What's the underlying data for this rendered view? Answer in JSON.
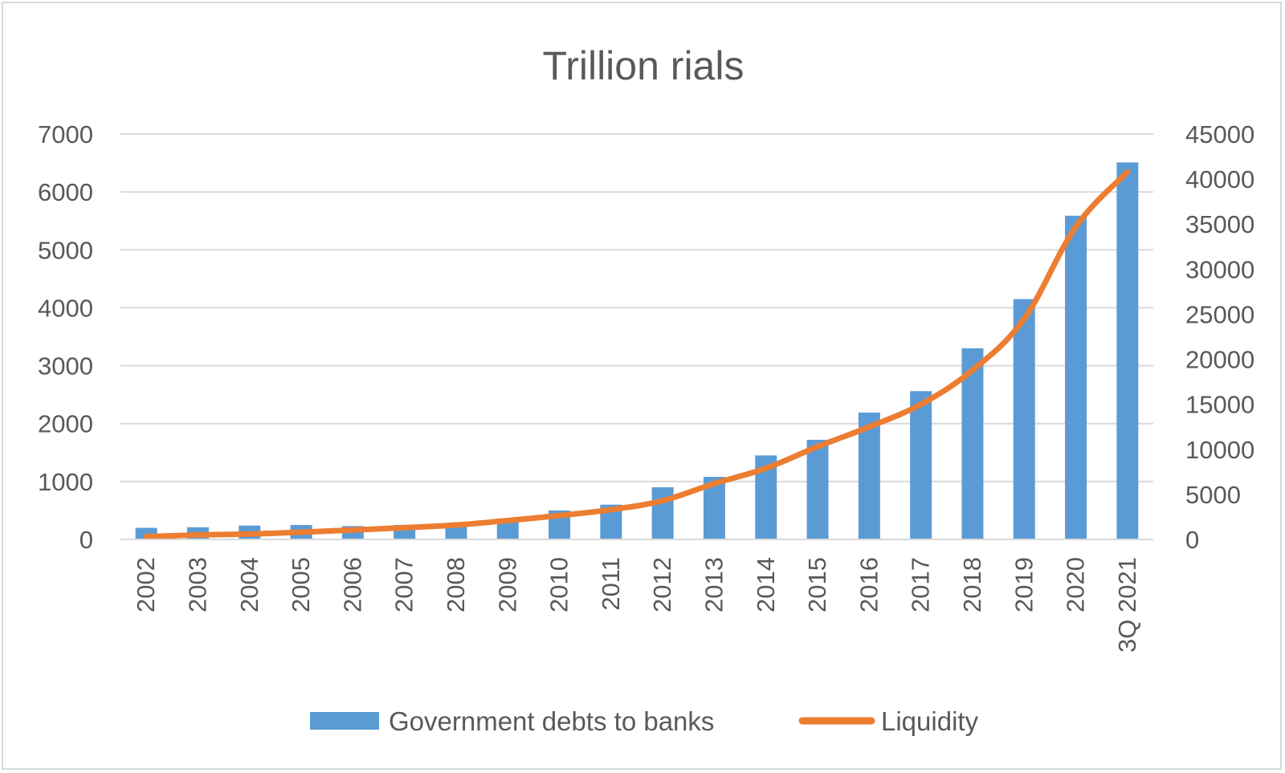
{
  "chart_data": {
    "type": "bar",
    "title": "Trillion rials",
    "categories": [
      "2002",
      "2003",
      "2004",
      "2005",
      "2006",
      "2007",
      "2008",
      "2009",
      "2010",
      "2011",
      "2012",
      "2013",
      "2014",
      "2015",
      "2016",
      "2017",
      "2018",
      "2019",
      "2020",
      "3Q 2021"
    ],
    "y_left": {
      "ticks": [
        "0",
        "1000",
        "2000",
        "3000",
        "4000",
        "5000",
        "6000",
        "7000"
      ],
      "min": 0,
      "max": 7000
    },
    "y_right": {
      "ticks": [
        "0",
        "5000",
        "10000",
        "15000",
        "20000",
        "25000",
        "30000",
        "35000",
        "40000",
        "45000"
      ],
      "min": 0,
      "max": 45000
    },
    "grid": true,
    "legend_position": "bottom",
    "series": [
      {
        "name": "Government debts to banks",
        "type": "bar",
        "axis": "left",
        "color": "#5b9bd5",
        "values": [
          200,
          210,
          240,
          250,
          230,
          250,
          280,
          360,
          500,
          600,
          900,
          1080,
          1450,
          1720,
          2190,
          2560,
          3300,
          4150,
          5590,
          6510
        ]
      },
      {
        "name": "Liquidity",
        "type": "line",
        "axis": "right",
        "color": "#ed7d31",
        "values": [
          300,
          500,
          600,
          800,
          1050,
          1300,
          1600,
          2100,
          2650,
          3300,
          4300,
          6200,
          7900,
          10300,
          12500,
          15000,
          18800,
          24500,
          34700,
          40800
        ]
      }
    ]
  }
}
